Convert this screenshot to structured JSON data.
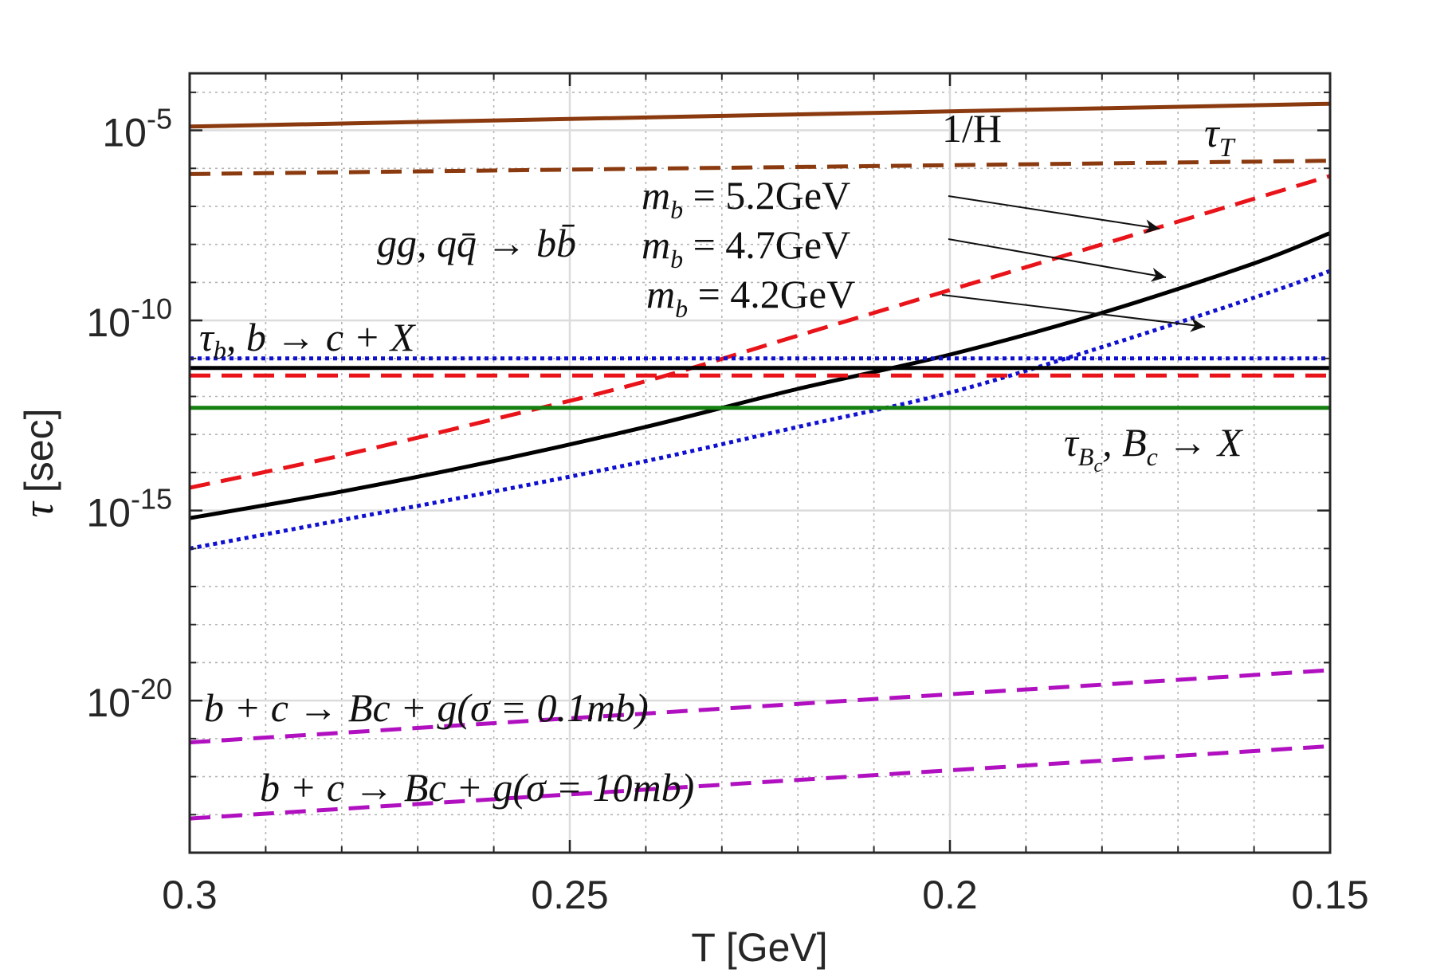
{
  "chart_data": {
    "type": "line",
    "title": "",
    "xlabel": "T [GeV]",
    "ylabel": "[sec]",
    "ylabel_symbol": "τ",
    "xlim": [
      0.3,
      0.15
    ],
    "x_reversed": true,
    "yscale": "log",
    "ylim_log10": [
      -24,
      -3.5
    ],
    "grid": true,
    "minor_grid": true,
    "x_ticks": [
      {
        "value": 0.3,
        "label": "0.3"
      },
      {
        "value": 0.25,
        "label": "0.25"
      },
      {
        "value": 0.2,
        "label": "0.2"
      },
      {
        "value": 0.15,
        "label": "0.15"
      }
    ],
    "y_ticks": [
      {
        "log10": -5,
        "base": "10",
        "exp": "-5"
      },
      {
        "log10": -10,
        "base": "10",
        "exp": "-10"
      },
      {
        "log10": -15,
        "base": "10",
        "exp": "-15"
      },
      {
        "log10": -20,
        "base": "10",
        "exp": "-20"
      }
    ],
    "series": [
      {
        "name": "1/H",
        "color": "#8B3A0F",
        "dash": "solid",
        "x": [
          0.3,
          0.15
        ],
        "log10_y": [
          -4.9,
          -4.3
        ]
      },
      {
        "name": "τ_T",
        "color": "#8B3A0F",
        "dash": "dashed",
        "x": [
          0.3,
          0.15
        ],
        "log10_y": [
          -6.15,
          -5.8
        ]
      },
      {
        "name": "gg, qq̄ → bb̄, m_b = 5.2GeV",
        "color": "#E8141A",
        "dash": "dashed",
        "x": [
          0.3,
          0.28,
          0.26,
          0.24,
          0.22,
          0.2,
          0.18,
          0.16,
          0.15
        ],
        "log10_y": [
          -14.4,
          -13.55,
          -12.6,
          -11.6,
          -10.4,
          -9.2,
          -8.0,
          -6.8,
          -6.2
        ]
      },
      {
        "name": "gg, qq̄ → bb̄, m_b = 4.7GeV",
        "color": "#000000",
        "dash": "solid",
        "x": [
          0.3,
          0.28,
          0.26,
          0.24,
          0.22,
          0.2,
          0.18,
          0.16,
          0.15
        ],
        "log10_y": [
          -15.2,
          -14.5,
          -13.7,
          -12.8,
          -11.8,
          -10.9,
          -9.8,
          -8.5,
          -7.7
        ]
      },
      {
        "name": "gg, qq̄ → bb̄, m_b = 4.2GeV",
        "color": "#1010D0",
        "dash": "dotted",
        "x": [
          0.3,
          0.28,
          0.26,
          0.24,
          0.22,
          0.2,
          0.18,
          0.16,
          0.15
        ],
        "log10_y": [
          -16.0,
          -15.25,
          -14.5,
          -13.7,
          -12.8,
          -11.9,
          -10.7,
          -9.4,
          -8.7
        ]
      },
      {
        "name": "τ_b, b → c + X",
        "color": "#1010D0",
        "dash": "dotted",
        "x": [
          0.3,
          0.15
        ],
        "log10_y": [
          -11.0,
          -11.0
        ]
      },
      {
        "name": "τ_b (m_b = 4.7GeV)",
        "color": "#000000",
        "dash": "solid",
        "x": [
          0.3,
          0.15
        ],
        "log10_y": [
          -11.25,
          -11.25
        ]
      },
      {
        "name": "τ_b (m_b = 5.2GeV)",
        "color": "#E8141A",
        "dash": "dashed",
        "x": [
          0.3,
          0.15
        ],
        "log10_y": [
          -11.45,
          -11.45
        ]
      },
      {
        "name": "τ_Bc, B_c → X",
        "color": "#14800F",
        "dash": "solid",
        "x": [
          0.3,
          0.15
        ],
        "log10_y": [
          -12.3,
          -12.3
        ]
      },
      {
        "name": "b + c → Bc + g (σ = 0.1mb)",
        "color": "#B010C0",
        "dash": "dashed",
        "x": [
          0.3,
          0.15
        ],
        "log10_y": [
          -21.1,
          -19.2
        ]
      },
      {
        "name": "b + c → Bc + g (σ = 10mb)",
        "color": "#B010C0",
        "dash": "dashed",
        "x": [
          0.3,
          0.15
        ],
        "log10_y": [
          -23.1,
          -21.2
        ]
      }
    ],
    "annotations": {
      "inv_h": "1/H",
      "tau_t_sym": "τ",
      "tau_t_sub": "T",
      "mb52_lhs": "m",
      "mb52_sub": "b",
      "mb52_rhs": " = 5.2GeV",
      "mb47_lhs": "m",
      "mb47_sub": "b",
      "mb47_rhs": " = 4.7GeV",
      "mb42_lhs": "m",
      "mb42_sub": "b",
      "mb42_rhs": " = 4.2GeV",
      "process": "gg, qq̄ → bb̄",
      "tau_b_sym": "τ",
      "tau_b_sub": "b",
      "tau_b_rest": ", b → c + X",
      "tau_bc_sym": "τ",
      "tau_bc_sub": "B",
      "tau_bc_subsub": "c",
      "tau_bc_rest": ", B",
      "tau_bc_sub2": "c",
      "tau_bc_arrow": " → X",
      "bc01": "b + c → Bc + g(σ = 0.1mb)",
      "bc10": "b + c → Bc + g(σ = 10mb)"
    }
  }
}
